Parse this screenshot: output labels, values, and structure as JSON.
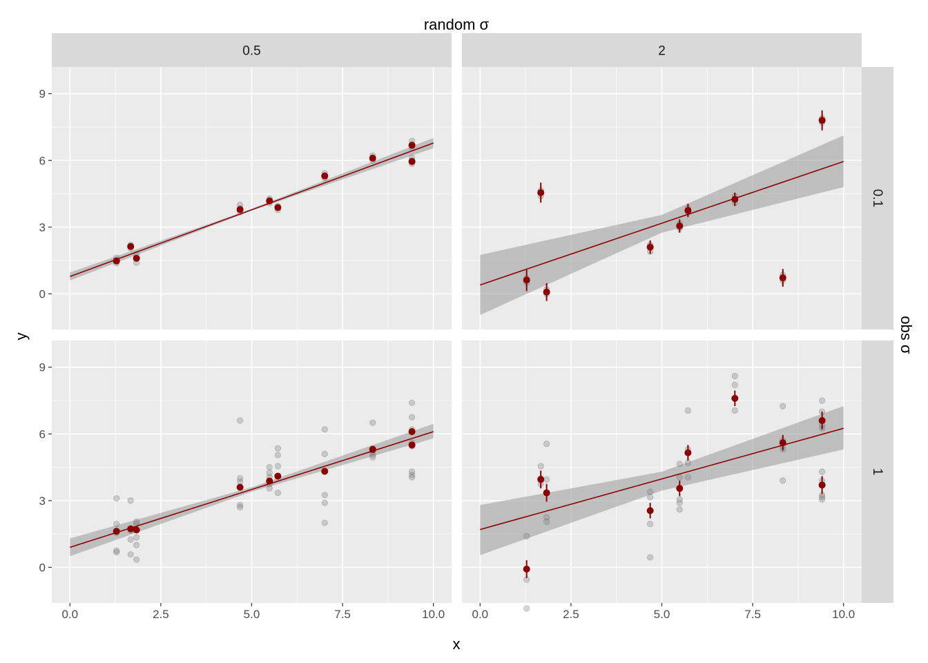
{
  "chart_data": {
    "type": "scatter",
    "layout": "facet_grid",
    "col_facet_title": "random σ",
    "row_facet_title": "obs σ",
    "xlabel": "x",
    "ylabel": "y",
    "xlim": [
      -0.5,
      10.5
    ],
    "ylim": [
      -1.6,
      10.2
    ],
    "x_ticks": [
      0,
      2.5,
      5,
      7.5,
      10
    ],
    "x_tick_labels": [
      "0.0",
      "2.5",
      "5.0",
      "7.5",
      "10.0"
    ],
    "y_ticks": [
      0,
      3,
      6,
      9
    ],
    "y_tick_labels": [
      "0",
      "3",
      "6",
      "9"
    ],
    "x_minor_ticks": [
      1.25,
      3.75,
      6.25,
      8.75
    ],
    "y_minor_ticks": [
      1.5,
      4.5,
      7.5
    ],
    "grid": true,
    "legend": "none",
    "colors": {
      "panel_bg": "#ebebeb",
      "strip_bg": "#d9d9d9",
      "grid": "#ffffff",
      "fit_line": "#8b0000",
      "ribbon": "#999999",
      "mean_point": "#8b0000",
      "obs_point": "#808080"
    },
    "col_labels": [
      "0.5",
      "2"
    ],
    "row_labels": [
      "0.1",
      "1"
    ],
    "panels": [
      {
        "col": "0.5",
        "row": "0.1",
        "fit": {
          "x": [
            0,
            10
          ],
          "y": [
            0.78,
            6.78
          ]
        },
        "ribbon": {
          "x": [
            0,
            5,
            10
          ],
          "lower": [
            0.6,
            3.74,
            6.55
          ],
          "upper": [
            0.96,
            3.82,
            7.01
          ]
        },
        "means": [
          {
            "x": 1.28,
            "y": 1.48,
            "err": 0.1
          },
          {
            "x": 1.67,
            "y": 2.13,
            "err": 0.1
          },
          {
            "x": 1.83,
            "y": 1.6,
            "err": 0.1
          },
          {
            "x": 4.68,
            "y": 3.79,
            "err": 0.1
          },
          {
            "x": 5.49,
            "y": 4.18,
            "err": 0.1
          },
          {
            "x": 5.72,
            "y": 3.88,
            "err": 0.1
          },
          {
            "x": 7.01,
            "y": 5.3,
            "err": 0.1
          },
          {
            "x": 8.33,
            "y": 6.1,
            "err": 0.1
          },
          {
            "x": 9.41,
            "y": 6.68,
            "err": 0.1
          },
          {
            "x": 9.41,
            "y": 5.95,
            "err": 0.1
          }
        ],
        "observations": [
          {
            "x": 1.28,
            "y": 1.38
          },
          {
            "x": 1.28,
            "y": 1.5
          },
          {
            "x": 1.28,
            "y": 1.62
          },
          {
            "x": 1.67,
            "y": 2.05
          },
          {
            "x": 1.67,
            "y": 2.2
          },
          {
            "x": 1.83,
            "y": 1.4
          },
          {
            "x": 1.83,
            "y": 1.6
          },
          {
            "x": 1.83,
            "y": 1.78
          },
          {
            "x": 4.68,
            "y": 3.68
          },
          {
            "x": 4.68,
            "y": 3.85
          },
          {
            "x": 4.68,
            "y": 4.0
          },
          {
            "x": 5.49,
            "y": 4.08
          },
          {
            "x": 5.49,
            "y": 4.2
          },
          {
            "x": 5.49,
            "y": 4.28
          },
          {
            "x": 5.72,
            "y": 3.78
          },
          {
            "x": 5.72,
            "y": 3.95
          },
          {
            "x": 7.01,
            "y": 5.2
          },
          {
            "x": 7.01,
            "y": 5.3
          },
          {
            "x": 7.01,
            "y": 5.42
          },
          {
            "x": 8.33,
            "y": 6.0
          },
          {
            "x": 8.33,
            "y": 6.12
          },
          {
            "x": 8.33,
            "y": 6.22
          },
          {
            "x": 9.41,
            "y": 6.58
          },
          {
            "x": 9.41,
            "y": 6.72
          },
          {
            "x": 9.41,
            "y": 6.88
          },
          {
            "x": 9.41,
            "y": 5.85
          },
          {
            "x": 9.41,
            "y": 6.0
          },
          {
            "x": 9.41,
            "y": 6.12
          }
        ]
      },
      {
        "col": "2",
        "row": "0.1",
        "fit": {
          "x": [
            0,
            10
          ],
          "y": [
            0.4,
            5.95
          ]
        },
        "ribbon": {
          "x": [
            0,
            5,
            10
          ],
          "lower": [
            -0.95,
            2.75,
            4.8
          ],
          "upper": [
            1.75,
            3.55,
            7.12
          ]
        },
        "means": [
          {
            "x": 1.28,
            "y": 0.62,
            "err": 0.5
          },
          {
            "x": 1.67,
            "y": 4.55,
            "err": 0.45
          },
          {
            "x": 1.83,
            "y": 0.08,
            "err": 0.4
          },
          {
            "x": 4.68,
            "y": 2.1,
            "err": 0.3
          },
          {
            "x": 5.49,
            "y": 3.05,
            "err": 0.3
          },
          {
            "x": 5.72,
            "y": 3.75,
            "err": 0.3
          },
          {
            "x": 7.01,
            "y": 4.25,
            "err": 0.3
          },
          {
            "x": 8.33,
            "y": 0.72,
            "err": 0.4
          },
          {
            "x": 9.41,
            "y": 7.8,
            "err": 0.45
          }
        ],
        "observations": [
          {
            "x": 1.28,
            "y": 0.5
          },
          {
            "x": 1.28,
            "y": 0.7
          },
          {
            "x": 1.67,
            "y": 4.4
          },
          {
            "x": 1.67,
            "y": 4.65
          },
          {
            "x": 1.83,
            "y": 0.0
          },
          {
            "x": 1.83,
            "y": 0.2
          },
          {
            "x": 4.68,
            "y": 1.9
          },
          {
            "x": 4.68,
            "y": 2.2
          },
          {
            "x": 5.49,
            "y": 2.95
          },
          {
            "x": 5.49,
            "y": 3.15
          },
          {
            "x": 5.72,
            "y": 3.65
          },
          {
            "x": 5.72,
            "y": 3.85
          },
          {
            "x": 7.01,
            "y": 4.1
          },
          {
            "x": 7.01,
            "y": 4.4
          },
          {
            "x": 8.33,
            "y": 0.6
          },
          {
            "x": 8.33,
            "y": 0.85
          },
          {
            "x": 9.41,
            "y": 7.7
          },
          {
            "x": 9.41,
            "y": 7.9
          }
        ]
      },
      {
        "col": "0.5",
        "row": "1",
        "fit": {
          "x": [
            0,
            10
          ],
          "y": [
            0.9,
            6.1
          ]
        },
        "ribbon": {
          "x": [
            0,
            5,
            10
          ],
          "lower": [
            0.5,
            3.4,
            5.8
          ],
          "upper": [
            1.3,
            3.6,
            6.45
          ]
        },
        "means": [
          {
            "x": 1.28,
            "y": 1.62,
            "err": 0.12
          },
          {
            "x": 1.67,
            "y": 1.73,
            "err": 0.12
          },
          {
            "x": 1.83,
            "y": 1.68,
            "err": 0.12
          },
          {
            "x": 4.68,
            "y": 3.6,
            "err": 0.12
          },
          {
            "x": 5.49,
            "y": 3.88,
            "err": 0.12
          },
          {
            "x": 5.72,
            "y": 4.1,
            "err": 0.12
          },
          {
            "x": 7.01,
            "y": 4.32,
            "err": 0.12
          },
          {
            "x": 8.33,
            "y": 5.3,
            "err": 0.12
          },
          {
            "x": 9.41,
            "y": 6.1,
            "err": 0.15
          },
          {
            "x": 9.41,
            "y": 5.5,
            "err": 0.15
          }
        ],
        "observations": [
          {
            "x": 1.28,
            "y": 3.1
          },
          {
            "x": 1.28,
            "y": 1.95
          },
          {
            "x": 1.28,
            "y": 1.55
          },
          {
            "x": 1.28,
            "y": 0.75
          },
          {
            "x": 1.28,
            "y": 0.68
          },
          {
            "x": 1.67,
            "y": 3.0
          },
          {
            "x": 1.67,
            "y": 1.65
          },
          {
            "x": 1.67,
            "y": 1.25
          },
          {
            "x": 1.67,
            "y": 0.58
          },
          {
            "x": 1.83,
            "y": 2.05
          },
          {
            "x": 1.83,
            "y": 1.95
          },
          {
            "x": 1.83,
            "y": 1.35
          },
          {
            "x": 1.83,
            "y": 1.0
          },
          {
            "x": 1.83,
            "y": 0.35
          },
          {
            "x": 4.68,
            "y": 6.6
          },
          {
            "x": 4.68,
            "y": 4.0
          },
          {
            "x": 4.68,
            "y": 3.85
          },
          {
            "x": 4.68,
            "y": 2.8
          },
          {
            "x": 4.68,
            "y": 2.7
          },
          {
            "x": 5.49,
            "y": 4.5
          },
          {
            "x": 5.49,
            "y": 4.25
          },
          {
            "x": 5.49,
            "y": 4.05
          },
          {
            "x": 5.49,
            "y": 3.75
          },
          {
            "x": 5.49,
            "y": 3.55
          },
          {
            "x": 5.72,
            "y": 5.35
          },
          {
            "x": 5.72,
            "y": 5.05
          },
          {
            "x": 5.72,
            "y": 4.55
          },
          {
            "x": 5.72,
            "y": 3.35
          },
          {
            "x": 7.01,
            "y": 6.2
          },
          {
            "x": 7.01,
            "y": 5.1
          },
          {
            "x": 7.01,
            "y": 4.3
          },
          {
            "x": 7.01,
            "y": 3.25
          },
          {
            "x": 7.01,
            "y": 2.9
          },
          {
            "x": 7.01,
            "y": 2.0
          },
          {
            "x": 8.33,
            "y": 6.5
          },
          {
            "x": 8.33,
            "y": 5.35
          },
          {
            "x": 8.33,
            "y": 5.2
          },
          {
            "x": 8.33,
            "y": 5.05
          },
          {
            "x": 8.33,
            "y": 4.95
          },
          {
            "x": 9.41,
            "y": 7.4
          },
          {
            "x": 9.41,
            "y": 6.75
          },
          {
            "x": 9.41,
            "y": 6.2
          },
          {
            "x": 9.41,
            "y": 5.6
          },
          {
            "x": 9.41,
            "y": 5.45
          },
          {
            "x": 9.41,
            "y": 4.3
          },
          {
            "x": 9.41,
            "y": 4.15
          },
          {
            "x": 9.41,
            "y": 4.05
          }
        ]
      },
      {
        "col": "2",
        "row": "1",
        "fit": {
          "x": [
            0,
            10
          ],
          "y": [
            1.7,
            6.25
          ]
        },
        "ribbon": {
          "x": [
            0,
            5,
            10
          ],
          "lower": [
            0.55,
            3.45,
            5.3
          ],
          "upper": [
            2.8,
            4.3,
            7.25
          ]
        },
        "means": [
          {
            "x": 1.28,
            "y": -0.08,
            "err": 0.4
          },
          {
            "x": 1.67,
            "y": 3.95,
            "err": 0.4
          },
          {
            "x": 1.83,
            "y": 3.35,
            "err": 0.4
          },
          {
            "x": 4.68,
            "y": 2.55,
            "err": 0.35
          },
          {
            "x": 5.49,
            "y": 3.55,
            "err": 0.35
          },
          {
            "x": 5.72,
            "y": 5.15,
            "err": 0.35
          },
          {
            "x": 7.01,
            "y": 7.6,
            "err": 0.35
          },
          {
            "x": 8.33,
            "y": 5.6,
            "err": 0.35
          },
          {
            "x": 9.41,
            "y": 6.6,
            "err": 0.4
          },
          {
            "x": 9.41,
            "y": 3.7,
            "err": 0.4
          }
        ],
        "observations": [
          {
            "x": 1.28,
            "y": 1.4
          },
          {
            "x": 1.28,
            "y": -0.55
          },
          {
            "x": 1.28,
            "y": -1.85
          },
          {
            "x": 1.67,
            "y": 4.55
          },
          {
            "x": 1.67,
            "y": 4.0
          },
          {
            "x": 1.67,
            "y": 3.75
          },
          {
            "x": 1.83,
            "y": 5.55
          },
          {
            "x": 1.83,
            "y": 3.95
          },
          {
            "x": 1.83,
            "y": 2.25
          },
          {
            "x": 1.83,
            "y": 2.05
          },
          {
            "x": 4.68,
            "y": 3.4
          },
          {
            "x": 4.68,
            "y": 3.15
          },
          {
            "x": 4.68,
            "y": 1.95
          },
          {
            "x": 4.68,
            "y": 0.45
          },
          {
            "x": 5.49,
            "y": 4.65
          },
          {
            "x": 5.49,
            "y": 4.05
          },
          {
            "x": 5.49,
            "y": 3.05
          },
          {
            "x": 5.49,
            "y": 2.9
          },
          {
            "x": 5.49,
            "y": 2.6
          },
          {
            "x": 5.72,
            "y": 7.05
          },
          {
            "x": 5.72,
            "y": 5.3
          },
          {
            "x": 5.72,
            "y": 4.7
          },
          {
            "x": 5.72,
            "y": 4.05
          },
          {
            "x": 7.01,
            "y": 8.6
          },
          {
            "x": 7.01,
            "y": 8.2
          },
          {
            "x": 7.01,
            "y": 7.05
          },
          {
            "x": 8.33,
            "y": 7.25
          },
          {
            "x": 8.33,
            "y": 5.7
          },
          {
            "x": 8.33,
            "y": 5.45
          },
          {
            "x": 8.33,
            "y": 5.3
          },
          {
            "x": 8.33,
            "y": 3.9
          },
          {
            "x": 9.41,
            "y": 7.5
          },
          {
            "x": 9.41,
            "y": 7.0
          },
          {
            "x": 9.41,
            "y": 6.4
          },
          {
            "x": 9.41,
            "y": 6.25
          },
          {
            "x": 9.41,
            "y": 4.3
          },
          {
            "x": 9.41,
            "y": 3.9
          },
          {
            "x": 9.41,
            "y": 3.25
          },
          {
            "x": 9.41,
            "y": 3.15
          },
          {
            "x": 9.41,
            "y": 3.05
          }
        ]
      }
    ]
  }
}
